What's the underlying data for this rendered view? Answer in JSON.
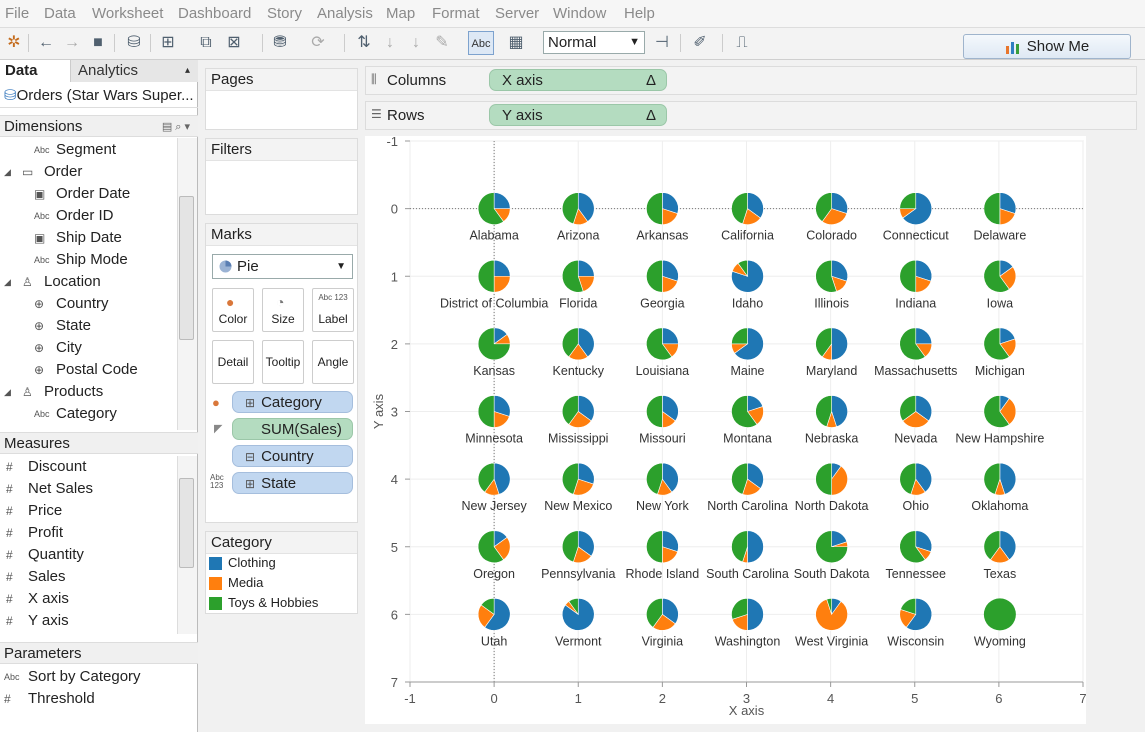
{
  "menu": [
    "File",
    "Data",
    "Worksheet",
    "Dashboard",
    "Story",
    "Analysis",
    "Map",
    "Format",
    "Server",
    "Window",
    "Help"
  ],
  "toolbar": {
    "format_value": "Normal",
    "show_me_label": "Show Me",
    "abc_label": "Abc"
  },
  "left_panel": {
    "tabs": [
      "Data",
      "Analytics"
    ],
    "datasource": "Orders (Star Wars Super...",
    "dimensions_title": "Dimensions",
    "dimensions": [
      {
        "label": "Segment",
        "icon": "Abc",
        "level": 1
      },
      {
        "label": "Order",
        "icon": "folder",
        "level": 0
      },
      {
        "label": "Order Date",
        "icon": "date",
        "level": 1
      },
      {
        "label": "Order ID",
        "icon": "Abc",
        "level": 1
      },
      {
        "label": "Ship Date",
        "icon": "date",
        "level": 1
      },
      {
        "label": "Ship Mode",
        "icon": "Abc",
        "level": 1
      },
      {
        "label": "Location",
        "icon": "hierarchy",
        "level": 0
      },
      {
        "label": "Country",
        "icon": "globe",
        "level": 1
      },
      {
        "label": "State",
        "icon": "globe",
        "level": 1
      },
      {
        "label": "City",
        "icon": "globe",
        "level": 1
      },
      {
        "label": "Postal Code",
        "icon": "globe",
        "level": 1
      },
      {
        "label": "Products",
        "icon": "hierarchy",
        "level": 0
      },
      {
        "label": "Category",
        "icon": "Abc",
        "level": 1
      }
    ],
    "measures_title": "Measures",
    "measures": [
      "Discount",
      "Net Sales",
      "Price",
      "Profit",
      "Quantity",
      "Sales",
      "X axis",
      "Y axis"
    ],
    "parameters_title": "Parameters",
    "parameters": [
      {
        "label": "Sort by Category",
        "icon": "Abc"
      },
      {
        "label": "Threshold",
        "icon": "#"
      }
    ]
  },
  "pages_title": "Pages",
  "filters_title": "Filters",
  "marks": {
    "title": "Marks",
    "mark_type": "Pie",
    "buttons": [
      "Color",
      "Size",
      "Label",
      "Detail",
      "Tooltip",
      "Angle"
    ],
    "label_icon_text": "Abc 123",
    "pills": [
      "Category",
      "SUM(Sales)",
      "Country",
      "State"
    ]
  },
  "legend": {
    "title": "Category",
    "items": [
      {
        "label": "Clothing",
        "color": "#1f77b4"
      },
      {
        "label": "Media",
        "color": "#ff7f0e"
      },
      {
        "label": "Toys & Hobbies",
        "color": "#2ca02c"
      }
    ]
  },
  "columns": {
    "label": "Columns",
    "pill": "X axis",
    "delta": "Δ"
  },
  "rows": {
    "label": "Rows",
    "pill": "Y axis",
    "delta": "Δ"
  },
  "chart_data": {
    "type": "pie",
    "xlabel": "X axis",
    "ylabel": "Y axis",
    "xlim": [
      -1,
      7
    ],
    "ylim": [
      -1,
      7
    ],
    "xticks": [
      "-1",
      "0",
      "1",
      "2",
      "3",
      "4",
      "5",
      "6",
      "7"
    ],
    "yticks": [
      "-1",
      "0",
      "1",
      "2",
      "3",
      "4",
      "5",
      "6",
      "7"
    ],
    "series_names": [
      "Clothing",
      "Media",
      "Toys & Hobbies"
    ],
    "colors": [
      "#1f77b4",
      "#ff7f0e",
      "#2ca02c"
    ],
    "states": [
      {
        "name": "Alabama",
        "x": 0,
        "y": 0,
        "v": [
          25,
          15,
          60
        ]
      },
      {
        "name": "Arizona",
        "x": 1,
        "y": 0,
        "v": [
          40,
          15,
          45
        ]
      },
      {
        "name": "Arkansas",
        "x": 2,
        "y": 0,
        "v": [
          30,
          20,
          50
        ]
      },
      {
        "name": "California",
        "x": 3,
        "y": 0,
        "v": [
          35,
          20,
          45
        ]
      },
      {
        "name": "Colorado",
        "x": 4,
        "y": 0,
        "v": [
          30,
          30,
          40
        ]
      },
      {
        "name": "Connecticut",
        "x": 5,
        "y": 0,
        "v": [
          65,
          10,
          25
        ]
      },
      {
        "name": "Delaware",
        "x": 6,
        "y": 0,
        "v": [
          30,
          20,
          50
        ]
      },
      {
        "name": "District of Columbia",
        "x": 0,
        "y": 1,
        "v": [
          25,
          25,
          50
        ]
      },
      {
        "name": "Florida",
        "x": 1,
        "y": 1,
        "v": [
          25,
          20,
          55
        ]
      },
      {
        "name": "Georgia",
        "x": 2,
        "y": 1,
        "v": [
          30,
          20,
          50
        ]
      },
      {
        "name": "Idaho",
        "x": 3,
        "y": 1,
        "v": [
          80,
          10,
          10
        ]
      },
      {
        "name": "Illinois",
        "x": 4,
        "y": 1,
        "v": [
          30,
          15,
          55
        ]
      },
      {
        "name": "Indiana",
        "x": 5,
        "y": 1,
        "v": [
          30,
          20,
          50
        ]
      },
      {
        "name": "Iowa",
        "x": 6,
        "y": 1,
        "v": [
          15,
          25,
          60
        ]
      },
      {
        "name": "Kansas",
        "x": 0,
        "y": 2,
        "v": [
          15,
          10,
          75
        ]
      },
      {
        "name": "Kentucky",
        "x": 1,
        "y": 2,
        "v": [
          40,
          20,
          40
        ]
      },
      {
        "name": "Louisiana",
        "x": 2,
        "y": 2,
        "v": [
          25,
          15,
          60
        ]
      },
      {
        "name": "Maine",
        "x": 3,
        "y": 2,
        "v": [
          65,
          10,
          25
        ]
      },
      {
        "name": "Maryland",
        "x": 4,
        "y": 2,
        "v": [
          50,
          10,
          40
        ]
      },
      {
        "name": "Massachusetts",
        "x": 5,
        "y": 2,
        "v": [
          25,
          15,
          60
        ]
      },
      {
        "name": "Michigan",
        "x": 6,
        "y": 2,
        "v": [
          20,
          20,
          60
        ]
      },
      {
        "name": "Minnesota",
        "x": 0,
        "y": 3,
        "v": [
          30,
          20,
          50
        ]
      },
      {
        "name": "Mississippi",
        "x": 1,
        "y": 3,
        "v": [
          35,
          25,
          40
        ]
      },
      {
        "name": "Missouri",
        "x": 2,
        "y": 3,
        "v": [
          35,
          15,
          50
        ]
      },
      {
        "name": "Montana",
        "x": 3,
        "y": 3,
        "v": [
          20,
          20,
          60
        ]
      },
      {
        "name": "Nebraska",
        "x": 4,
        "y": 3,
        "v": [
          45,
          10,
          45
        ]
      },
      {
        "name": "Nevada",
        "x": 5,
        "y": 3,
        "v": [
          35,
          30,
          35
        ]
      },
      {
        "name": "New Hampshire",
        "x": 6,
        "y": 3,
        "v": [
          10,
          30,
          60
        ]
      },
      {
        "name": "New Jersey",
        "x": 0,
        "y": 4,
        "v": [
          45,
          15,
          40
        ]
      },
      {
        "name": "New Mexico",
        "x": 1,
        "y": 4,
        "v": [
          30,
          25,
          45
        ]
      },
      {
        "name": "New York",
        "x": 2,
        "y": 4,
        "v": [
          40,
          15,
          45
        ]
      },
      {
        "name": "North Carolina",
        "x": 3,
        "y": 4,
        "v": [
          35,
          20,
          45
        ]
      },
      {
        "name": "North Dakota",
        "x": 4,
        "y": 4,
        "v": [
          10,
          40,
          50
        ]
      },
      {
        "name": "Ohio",
        "x": 5,
        "y": 4,
        "v": [
          40,
          15,
          45
        ]
      },
      {
        "name": "Oklahoma",
        "x": 6,
        "y": 4,
        "v": [
          45,
          10,
          45
        ]
      },
      {
        "name": "Oregon",
        "x": 0,
        "y": 5,
        "v": [
          15,
          25,
          60
        ]
      },
      {
        "name": "Pennsylvania",
        "x": 1,
        "y": 5,
        "v": [
          35,
          20,
          45
        ]
      },
      {
        "name": "Rhode Island",
        "x": 2,
        "y": 5,
        "v": [
          30,
          20,
          50
        ]
      },
      {
        "name": "South Carolina",
        "x": 3,
        "y": 5,
        "v": [
          50,
          5,
          45
        ]
      },
      {
        "name": "South Dakota",
        "x": 4,
        "y": 5,
        "v": [
          20,
          5,
          75
        ]
      },
      {
        "name": "Tennessee",
        "x": 5,
        "y": 5,
        "v": [
          30,
          10,
          60
        ]
      },
      {
        "name": "Texas",
        "x": 6,
        "y": 5,
        "v": [
          40,
          20,
          40
        ]
      },
      {
        "name": "Utah",
        "x": 0,
        "y": 6,
        "v": [
          60,
          25,
          15
        ]
      },
      {
        "name": "Vermont",
        "x": 1,
        "y": 6,
        "v": [
          85,
          5,
          10
        ]
      },
      {
        "name": "Virginia",
        "x": 2,
        "y": 6,
        "v": [
          35,
          25,
          40
        ]
      },
      {
        "name": "Washington",
        "x": 3,
        "y": 6,
        "v": [
          50,
          20,
          30
        ]
      },
      {
        "name": "West Virginia",
        "x": 4,
        "y": 6,
        "v": [
          10,
          85,
          5
        ]
      },
      {
        "name": "Wisconsin",
        "x": 5,
        "y": 6,
        "v": [
          60,
          20,
          20
        ]
      },
      {
        "name": "Wyoming",
        "x": 6,
        "y": 6,
        "v": [
          0,
          0,
          100
        ]
      }
    ]
  }
}
